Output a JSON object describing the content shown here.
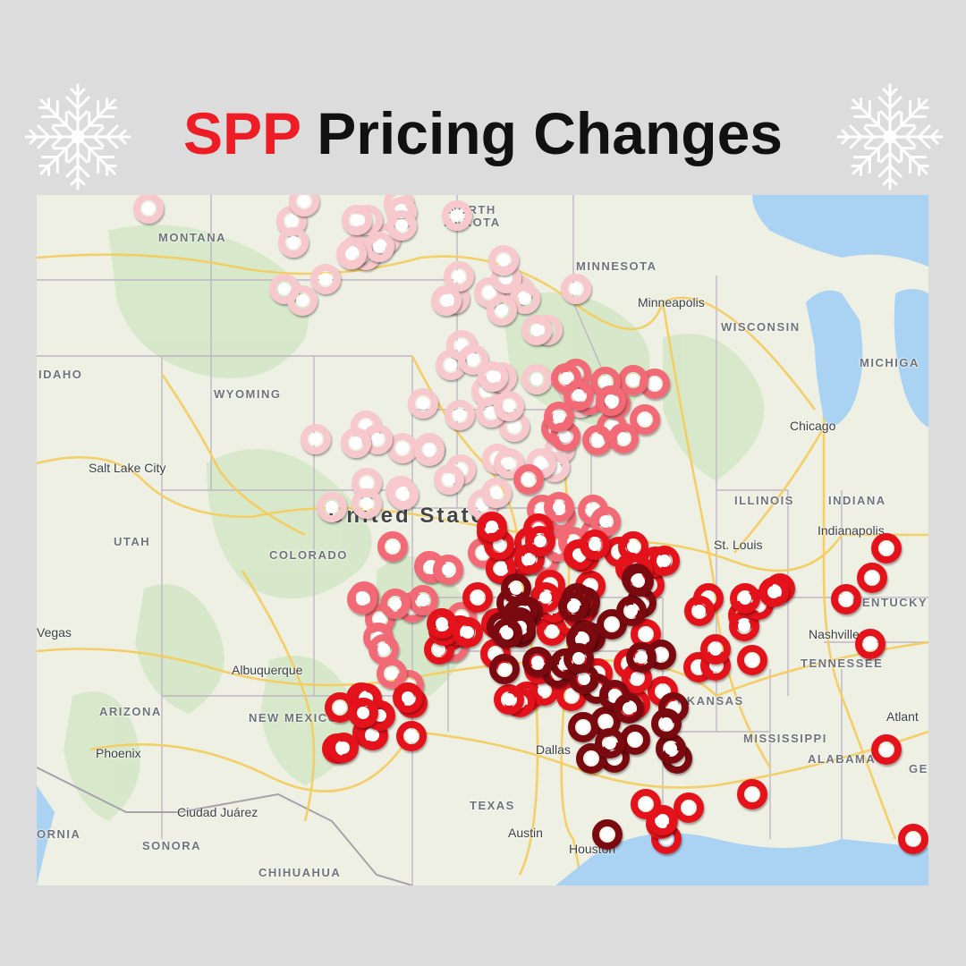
{
  "title": {
    "accent": "SPP",
    "rest": " Pricing Changes"
  },
  "colors": {
    "accent": "#ee1c24",
    "marker_light": "#f7c9cd",
    "marker_pink": "#f26a76",
    "marker_red": "#e3121b",
    "marker_dark": "#7a0a10",
    "water": "#aad3f3",
    "land": "#eef0e4"
  },
  "icons": [
    "snowflake-icon",
    "snowflake-icon",
    "map-marker-icon"
  ],
  "map": {
    "country_label": "United States",
    "state_labels": [
      "MONTANA",
      "NORTH",
      "DAKOTA",
      "MINNESOTA",
      "WISCONSIN",
      "MICHIGA",
      "IDAHO",
      "WYOMING",
      "UTAH",
      "COLORADO",
      "ILLINOIS",
      "INDIANA",
      "KENTUCKY",
      "TENNESSEE",
      "ARIZONA",
      "NEW MEXICO",
      "ARKANSAS",
      "MISSISSIPPI",
      "ALABAMA",
      "TEXAS",
      "SONORA",
      "CHIHUAHUA",
      "ORNIA",
      "GE"
    ],
    "city_labels": [
      "Minneapolis",
      "Chicago",
      "Salt Lake City",
      "St. Louis",
      "Indianapolis",
      "Nashville",
      "Albuquerque",
      "Phoenix",
      "Dallas",
      "Austin",
      "Houston",
      "Atlant",
      "Ciudad Juárez",
      "Vegas"
    ]
  }
}
